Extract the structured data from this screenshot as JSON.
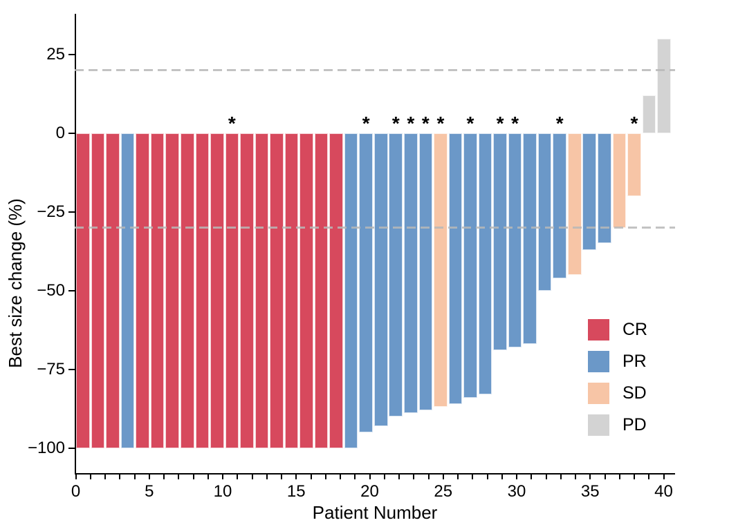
{
  "chart_data": {
    "type": "bar",
    "subtype": "waterfall",
    "title": "",
    "xlabel": "Patient Number",
    "ylabel": "Best size change (%)",
    "xlim": [
      0,
      40.8
    ],
    "ylim": [
      -108,
      38
    ],
    "grid": "off",
    "legend_position": "inside-right",
    "annotation_symbol": "*",
    "reference_lines": [
      {
        "value": 20,
        "style": "dashed",
        "color": "#b8b8b8"
      },
      {
        "value": -30,
        "style": "dashed",
        "color": "#b8b8b8"
      }
    ],
    "x_ticks": [
      {
        "value": 0,
        "label": "0"
      },
      {
        "value": 5,
        "label": "5"
      },
      {
        "value": 10,
        "label": "10"
      },
      {
        "value": 15,
        "label": "15"
      },
      {
        "value": 20,
        "label": "20"
      },
      {
        "value": 25,
        "label": "25"
      },
      {
        "value": 30,
        "label": "30"
      },
      {
        "value": 35,
        "label": "35"
      },
      {
        "value": 40,
        "label": "40"
      }
    ],
    "x_minor_tick_every": 1,
    "y_ticks": [
      {
        "value": 25,
        "label": "25"
      },
      {
        "value": 0,
        "label": "0"
      },
      {
        "value": -25,
        "label": "−25"
      },
      {
        "value": -50,
        "label": "−50"
      },
      {
        "value": -75,
        "label": "−75"
      },
      {
        "value": -100,
        "label": "−100"
      }
    ],
    "legend": [
      {
        "label": "CR",
        "color": "#D7495D"
      },
      {
        "label": "PR",
        "color": "#6B98C8"
      },
      {
        "label": "SD",
        "color": "#F7C5A6"
      },
      {
        "label": "PD",
        "color": "#D3D3D3"
      }
    ],
    "patients": [
      {
        "n": 1,
        "value": -100,
        "response": "CR",
        "star": false
      },
      {
        "n": 2,
        "value": -100,
        "response": "CR",
        "star": false
      },
      {
        "n": 3,
        "value": -100,
        "response": "CR",
        "star": false
      },
      {
        "n": 4,
        "value": -100,
        "response": "PR",
        "star": false
      },
      {
        "n": 5,
        "value": -100,
        "response": "CR",
        "star": false
      },
      {
        "n": 6,
        "value": -100,
        "response": "CR",
        "star": false
      },
      {
        "n": 7,
        "value": -100,
        "response": "CR",
        "star": false
      },
      {
        "n": 8,
        "value": -100,
        "response": "CR",
        "star": false
      },
      {
        "n": 9,
        "value": -100,
        "response": "CR",
        "star": false
      },
      {
        "n": 10,
        "value": -100,
        "response": "CR",
        "star": false
      },
      {
        "n": 11,
        "value": -100,
        "response": "CR",
        "star": true
      },
      {
        "n": 12,
        "value": -100,
        "response": "CR",
        "star": false
      },
      {
        "n": 13,
        "value": -100,
        "response": "CR",
        "star": false
      },
      {
        "n": 14,
        "value": -100,
        "response": "CR",
        "star": false
      },
      {
        "n": 15,
        "value": -100,
        "response": "CR",
        "star": false
      },
      {
        "n": 16,
        "value": -100,
        "response": "CR",
        "star": false
      },
      {
        "n": 17,
        "value": -100,
        "response": "CR",
        "star": false
      },
      {
        "n": 18,
        "value": -100,
        "response": "CR",
        "star": false
      },
      {
        "n": 19,
        "value": -100,
        "response": "PR",
        "star": false
      },
      {
        "n": 20,
        "value": -95,
        "response": "PR",
        "star": true
      },
      {
        "n": 21,
        "value": -93,
        "response": "PR",
        "star": false
      },
      {
        "n": 22,
        "value": -90,
        "response": "PR",
        "star": true
      },
      {
        "n": 23,
        "value": -89,
        "response": "PR",
        "star": true
      },
      {
        "n": 24,
        "value": -88,
        "response": "PR",
        "star": true
      },
      {
        "n": 25,
        "value": -87,
        "response": "SD",
        "star": true
      },
      {
        "n": 26,
        "value": -86,
        "response": "PR",
        "star": false
      },
      {
        "n": 27,
        "value": -84,
        "response": "PR",
        "star": true
      },
      {
        "n": 28,
        "value": -83,
        "response": "PR",
        "star": false
      },
      {
        "n": 29,
        "value": -69,
        "response": "PR",
        "star": true
      },
      {
        "n": 30,
        "value": -68,
        "response": "PR",
        "star": true
      },
      {
        "n": 31,
        "value": -67,
        "response": "PR",
        "star": false
      },
      {
        "n": 32,
        "value": -50,
        "response": "PR",
        "star": false
      },
      {
        "n": 33,
        "value": -46,
        "response": "PR",
        "star": true
      },
      {
        "n": 34,
        "value": -45,
        "response": "SD",
        "star": false
      },
      {
        "n": 35,
        "value": -37,
        "response": "PR",
        "star": false
      },
      {
        "n": 36,
        "value": -35,
        "response": "PR",
        "star": false
      },
      {
        "n": 37,
        "value": -30,
        "response": "SD",
        "star": false
      },
      {
        "n": 38,
        "value": -20,
        "response": "SD",
        "star": true
      },
      {
        "n": 39,
        "value": 12,
        "response": "PD",
        "star": false
      },
      {
        "n": 40,
        "value": 30,
        "response": "PD",
        "star": false
      }
    ],
    "colors": {
      "CR": "#D7495D",
      "PR": "#6B98C8",
      "SD": "#F7C5A6",
      "PD": "#D3D3D3",
      "axis": "#000000",
      "reference_line": "#b8b8b8"
    }
  }
}
